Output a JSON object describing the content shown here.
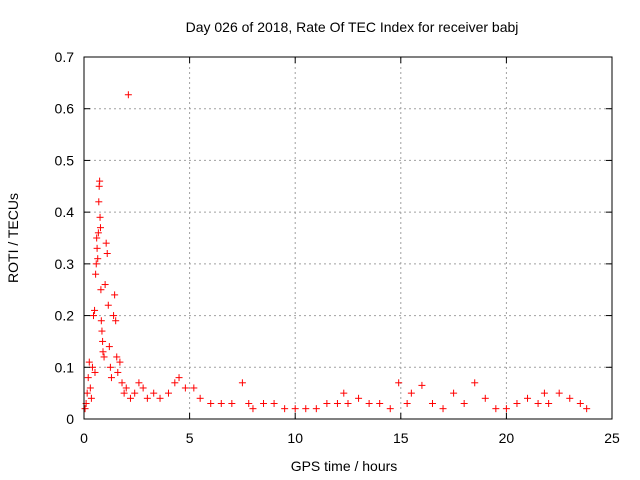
{
  "chart_data": {
    "type": "scatter",
    "title": "Day 026 of 2018, Rate Of TEC Index for receiver babj",
    "xlabel": "GPS time / hours",
    "ylabel": "ROTI / TECUs",
    "xlim": [
      0,
      25
    ],
    "ylim": [
      0,
      0.7
    ],
    "xticks": [
      "0",
      "5",
      "10",
      "15",
      "20",
      "25"
    ],
    "yticks": [
      "0",
      "0.1",
      "0.2",
      "0.3",
      "0.4",
      "0.5",
      "0.6",
      "0.7"
    ],
    "grid": true,
    "marker": "plus",
    "color": "#ff0000",
    "points": [
      [
        0.05,
        0.02
      ],
      [
        0.1,
        0.03
      ],
      [
        0.15,
        0.05
      ],
      [
        0.2,
        0.08
      ],
      [
        0.25,
        0.11
      ],
      [
        0.3,
        0.06
      ],
      [
        0.35,
        0.04
      ],
      [
        0.4,
        0.1
      ],
      [
        0.45,
        0.2
      ],
      [
        0.5,
        0.21
      ],
      [
        0.52,
        0.09
      ],
      [
        0.55,
        0.28
      ],
      [
        0.58,
        0.3
      ],
      [
        0.6,
        0.35
      ],
      [
        0.62,
        0.33
      ],
      [
        0.65,
        0.31
      ],
      [
        0.68,
        0.36
      ],
      [
        0.7,
        0.42
      ],
      [
        0.72,
        0.45
      ],
      [
        0.74,
        0.46
      ],
      [
        0.76,
        0.39
      ],
      [
        0.78,
        0.37
      ],
      [
        0.8,
        0.25
      ],
      [
        0.82,
        0.19
      ],
      [
        0.85,
        0.17
      ],
      [
        0.88,
        0.15
      ],
      [
        0.9,
        0.13
      ],
      [
        0.95,
        0.12
      ],
      [
        1.0,
        0.26
      ],
      [
        1.05,
        0.34
      ],
      [
        1.1,
        0.32
      ],
      [
        1.15,
        0.22
      ],
      [
        1.2,
        0.14
      ],
      [
        1.25,
        0.1
      ],
      [
        1.3,
        0.08
      ],
      [
        1.4,
        0.2
      ],
      [
        1.45,
        0.24
      ],
      [
        1.5,
        0.19
      ],
      [
        1.55,
        0.12
      ],
      [
        1.6,
        0.09
      ],
      [
        1.7,
        0.11
      ],
      [
        1.8,
        0.07
      ],
      [
        1.9,
        0.05
      ],
      [
        2.0,
        0.06
      ],
      [
        2.1,
        0.627
      ],
      [
        2.2,
        0.04
      ],
      [
        2.4,
        0.05
      ],
      [
        2.6,
        0.07
      ],
      [
        2.8,
        0.06
      ],
      [
        3.0,
        0.04
      ],
      [
        3.3,
        0.05
      ],
      [
        3.6,
        0.04
      ],
      [
        4.0,
        0.05
      ],
      [
        4.3,
        0.07
      ],
      [
        4.5,
        0.08
      ],
      [
        4.8,
        0.06
      ],
      [
        5.2,
        0.06
      ],
      [
        5.5,
        0.04
      ],
      [
        6.0,
        0.03
      ],
      [
        6.5,
        0.03
      ],
      [
        7.0,
        0.03
      ],
      [
        7.5,
        0.07
      ],
      [
        7.8,
        0.03
      ],
      [
        8.0,
        0.02
      ],
      [
        8.5,
        0.03
      ],
      [
        9.0,
        0.03
      ],
      [
        9.5,
        0.02
      ],
      [
        10.0,
        0.02
      ],
      [
        10.5,
        0.02
      ],
      [
        11.0,
        0.02
      ],
      [
        11.5,
        0.03
      ],
      [
        12.0,
        0.03
      ],
      [
        12.3,
        0.05
      ],
      [
        12.5,
        0.03
      ],
      [
        13.0,
        0.04
      ],
      [
        13.5,
        0.03
      ],
      [
        14.0,
        0.03
      ],
      [
        14.5,
        0.02
      ],
      [
        14.9,
        0.07
      ],
      [
        15.3,
        0.03
      ],
      [
        15.5,
        0.05
      ],
      [
        16.0,
        0.065
      ],
      [
        16.5,
        0.03
      ],
      [
        17.0,
        0.02
      ],
      [
        17.5,
        0.05
      ],
      [
        18.0,
        0.03
      ],
      [
        18.5,
        0.07
      ],
      [
        19.0,
        0.04
      ],
      [
        19.5,
        0.02
      ],
      [
        20.0,
        0.02
      ],
      [
        20.5,
        0.03
      ],
      [
        21.0,
        0.04
      ],
      [
        21.5,
        0.03
      ],
      [
        21.8,
        0.05
      ],
      [
        22.0,
        0.03
      ],
      [
        22.5,
        0.05
      ],
      [
        23.0,
        0.04
      ],
      [
        23.5,
        0.03
      ],
      [
        23.8,
        0.02
      ]
    ]
  }
}
